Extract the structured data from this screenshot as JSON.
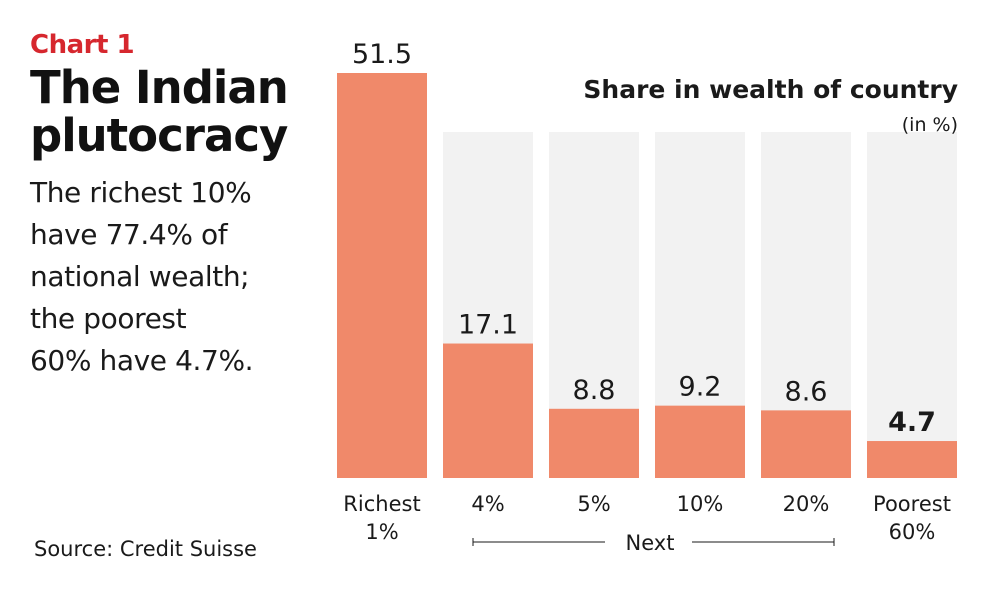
{
  "header": {
    "chart_label": "Chart 1",
    "title_line1": "The Indian",
    "title_line2": "plutocracy",
    "desc_lines": [
      "The richest 10%",
      "have 77.4% of",
      "national wealth;",
      "the poorest",
      "60% have 4.7%."
    ]
  },
  "source": "Source: Credit Suisse",
  "colors": {
    "bar": "#f0896a",
    "track": "#f2f2f2",
    "accent": "#d6272e"
  },
  "chart_data": {
    "type": "bar",
    "title": "Share in wealth of country",
    "subtitle": "(in %)",
    "categories": [
      [
        "Richest",
        "1%"
      ],
      [
        "4%"
      ],
      [
        "5%"
      ],
      [
        "10%"
      ],
      [
        "20%"
      ],
      [
        "Poorest",
        "60%"
      ]
    ],
    "values": [
      51.5,
      17.1,
      8.8,
      9.2,
      8.6,
      4.7
    ],
    "value_labels": [
      "51.5",
      "17.1",
      "8.8",
      "9.2",
      "8.6",
      "4.7"
    ],
    "bold_value_index": 5,
    "group_label": "Next",
    "ylim": [
      0,
      51.5
    ],
    "grid": false
  }
}
